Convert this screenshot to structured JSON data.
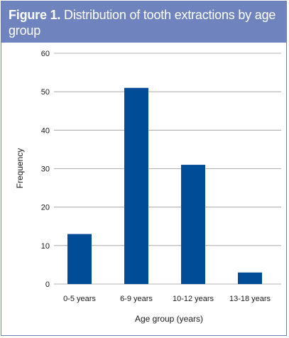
{
  "figure": {
    "label": "Figure 1.",
    "caption": "Distribution of tooth extractions by age group"
  },
  "colors": {
    "header_background": "#6f84bf",
    "bar": "#004c97",
    "gridline": "#9a9a9a"
  },
  "chart_data": {
    "type": "bar",
    "categories": [
      "0-5 years",
      "6-9 years",
      "10-12 years",
      "13-18 years"
    ],
    "values": [
      13,
      51,
      31,
      3
    ],
    "xlabel": "Age group (years)",
    "ylabel": "Frequency",
    "ylim": [
      0,
      60
    ],
    "yticks": [
      "0",
      "10",
      "20",
      "30",
      "40",
      "50",
      "60"
    ],
    "grid": true
  }
}
